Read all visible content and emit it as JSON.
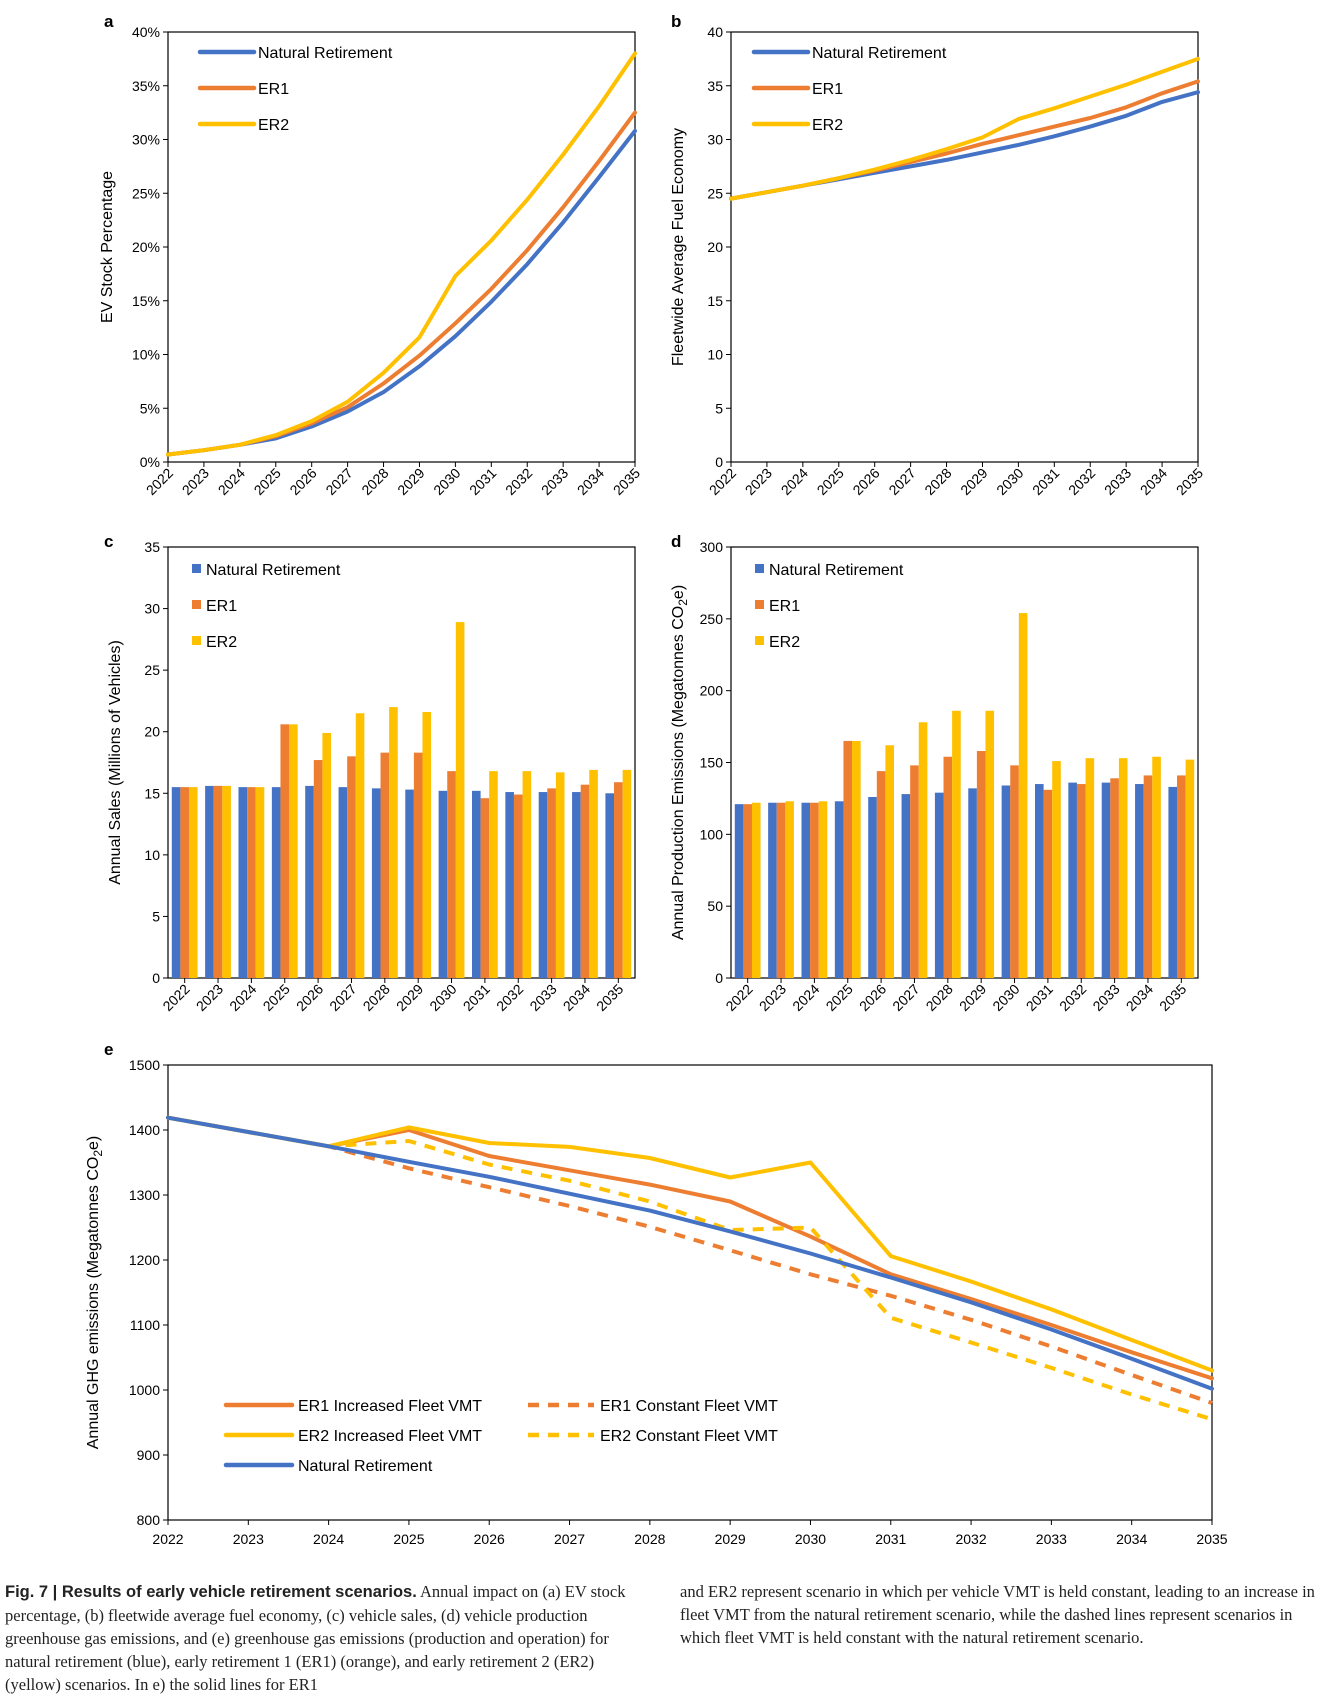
{
  "colors": {
    "natural": "#4472C4",
    "er1": "#ED7D31",
    "er2": "#FFC000"
  },
  "chart_data": [
    {
      "id": "a",
      "panel_label": "a",
      "type": "line",
      "ylabel": "EV Stock Percentage",
      "ylim": [
        0,
        40
      ],
      "yticks": [
        "0%",
        "5%",
        "10%",
        "15%",
        "20%",
        "25%",
        "30%",
        "35%",
        "40%"
      ],
      "categories": [
        "2022",
        "2023",
        "2024",
        "2025",
        "2026",
        "2027",
        "2028",
        "2029",
        "2030",
        "2031",
        "2032",
        "2033",
        "2034",
        "2035"
      ],
      "legend_placement": "top-left",
      "series": [
        {
          "name": "Natural Retirement",
          "color": "#4472C4",
          "values": [
            0.7,
            1.1,
            1.6,
            2.2,
            3.3,
            4.7,
            6.5,
            8.9,
            11.7,
            14.9,
            18.4,
            22.3,
            26.5,
            30.8
          ]
        },
        {
          "name": "ER1",
          "color": "#ED7D31",
          "values": [
            0.7,
            1.1,
            1.6,
            2.4,
            3.6,
            5.1,
            7.3,
            9.9,
            12.9,
            16.1,
            19.7,
            23.7,
            28.0,
            32.5
          ]
        },
        {
          "name": "ER2",
          "color": "#FFC000",
          "values": [
            0.7,
            1.1,
            1.6,
            2.5,
            3.8,
            5.6,
            8.3,
            11.6,
            17.3,
            20.6,
            24.4,
            28.6,
            33.1,
            38.0
          ]
        }
      ]
    },
    {
      "id": "b",
      "panel_label": "b",
      "type": "line",
      "ylabel": "Fleetwide Average Fuel Economy",
      "ylim": [
        0,
        40
      ],
      "yticks": [
        "0",
        "5",
        "10",
        "15",
        "20",
        "25",
        "30",
        "35",
        "40"
      ],
      "categories": [
        "2022",
        "2023",
        "2024",
        "2025",
        "2026",
        "2027",
        "2028",
        "2029",
        "2030",
        "2031",
        "2032",
        "2033",
        "2034",
        "2035"
      ],
      "legend_placement": "top-left",
      "series": [
        {
          "name": "Natural Retirement",
          "color": "#4472C4",
          "values": [
            24.5,
            25.1,
            25.7,
            26.3,
            26.9,
            27.5,
            28.1,
            28.8,
            29.5,
            30.3,
            31.2,
            32.2,
            33.5,
            34.4
          ]
        },
        {
          "name": "ER1",
          "color": "#ED7D31",
          "values": [
            24.5,
            25.1,
            25.7,
            26.4,
            27.1,
            27.9,
            28.7,
            29.6,
            30.4,
            31.2,
            32.0,
            33.0,
            34.3,
            35.4
          ]
        },
        {
          "name": "ER2",
          "color": "#FFC000",
          "values": [
            24.5,
            25.1,
            25.7,
            26.4,
            27.2,
            28.1,
            29.1,
            30.2,
            31.9,
            32.9,
            34.0,
            35.1,
            36.3,
            37.5
          ]
        }
      ]
    },
    {
      "id": "c",
      "panel_label": "c",
      "type": "bar",
      "ylabel": "Annual Sales (Millions of Vehicles)",
      "ylim": [
        0,
        35
      ],
      "yticks": [
        "0",
        "5",
        "10",
        "15",
        "20",
        "25",
        "30",
        "35"
      ],
      "categories": [
        "2022",
        "2023",
        "2024",
        "2025",
        "2026",
        "2027",
        "2028",
        "2029",
        "2030",
        "2031",
        "2032",
        "2033",
        "2034",
        "2035"
      ],
      "legend_placement": "top-left",
      "series": [
        {
          "name": "Natural Retirement",
          "color": "#4472C4",
          "values": [
            15.5,
            15.6,
            15.5,
            15.5,
            15.6,
            15.5,
            15.4,
            15.3,
            15.2,
            15.2,
            15.1,
            15.1,
            15.1,
            15.0
          ]
        },
        {
          "name": "ER1",
          "color": "#ED7D31",
          "values": [
            15.5,
            15.6,
            15.5,
            20.6,
            17.7,
            18.0,
            18.3,
            18.3,
            16.8,
            14.6,
            14.9,
            15.4,
            15.7,
            15.9
          ]
        },
        {
          "name": "ER2",
          "color": "#FFC000",
          "values": [
            15.5,
            15.6,
            15.5,
            20.6,
            19.9,
            21.5,
            22.0,
            21.6,
            28.9,
            16.8,
            16.8,
            16.7,
            16.9,
            16.9
          ]
        }
      ]
    },
    {
      "id": "d",
      "panel_label": "d",
      "type": "bar",
      "ylabel": "Annual Production Emissions (Megatonnes CO2e)",
      "ylabel_main": "Annual Production Emissions (Megatonnes CO",
      "ylabel_sub": "2",
      "ylabel_end": "e)",
      "ylim": [
        0,
        300
      ],
      "yticks": [
        "0",
        "50",
        "100",
        "150",
        "200",
        "250",
        "300"
      ],
      "categories": [
        "2022",
        "2023",
        "2024",
        "2025",
        "2026",
        "2027",
        "2028",
        "2029",
        "2030",
        "2031",
        "2032",
        "2033",
        "2034",
        "2035"
      ],
      "legend_placement": "top-left",
      "series": [
        {
          "name": "Natural Retirement",
          "color": "#4472C4",
          "values": [
            121,
            122,
            122,
            123,
            126,
            128,
            129,
            132,
            134,
            135,
            136,
            136,
            135,
            133
          ]
        },
        {
          "name": "ER1",
          "color": "#ED7D31",
          "values": [
            121,
            122,
            122,
            165,
            144,
            148,
            154,
            158,
            148,
            131,
            135,
            139,
            141,
            141
          ]
        },
        {
          "name": "ER2",
          "color": "#FFC000",
          "values": [
            122,
            123,
            123,
            165,
            162,
            178,
            186,
            186,
            254,
            151,
            153,
            153,
            154,
            152
          ]
        }
      ]
    },
    {
      "id": "e",
      "panel_label": "e",
      "type": "line",
      "ylabel": "Annual GHG emissions (Megatonnes CO2e)",
      "ylabel_main": "Annual GHG emissions (Megatonnes CO",
      "ylabel_sub": "2",
      "ylabel_end": "e)",
      "ylim": [
        800,
        1500
      ],
      "yticks": [
        "800",
        "900",
        "1000",
        "1100",
        "1200",
        "1300",
        "1400",
        "1500"
      ],
      "categories": [
        "2022",
        "2023",
        "2024",
        "2025",
        "2026",
        "2027",
        "2028",
        "2029",
        "2030",
        "2031",
        "2032",
        "2033",
        "2034",
        "2035"
      ],
      "legend_placement": "bottom-left",
      "series": [
        {
          "name": "ER1 Increased Fleet VMT",
          "color": "#ED7D31",
          "dashed": false,
          "values": [
            1419,
            1397,
            1375,
            1400,
            1360,
            1338,
            1316,
            1290,
            1236,
            1178,
            1140,
            1100,
            1058,
            1018
          ]
        },
        {
          "name": "ER1 Constant Fleet VMT",
          "color": "#ED7D31",
          "dashed": true,
          "values": [
            1419,
            1397,
            1375,
            1341,
            1312,
            1283,
            1251,
            1215,
            1178,
            1145,
            1108,
            1067,
            1023,
            980
          ]
        },
        {
          "name": "ER2 Increased Fleet VMT",
          "color": "#FFC000",
          "dashed": false,
          "values": [
            1419,
            1397,
            1375,
            1404,
            1380,
            1374,
            1357,
            1327,
            1350,
            1206,
            1167,
            1124,
            1077,
            1030
          ]
        },
        {
          "name": "ER2 Constant Fleet VMT",
          "color": "#FFC000",
          "dashed": true,
          "values": [
            1419,
            1397,
            1375,
            1383,
            1347,
            1322,
            1290,
            1246,
            1250,
            1111,
            1073,
            1034,
            993,
            955
          ]
        },
        {
          "name": "Natural Retirement",
          "color": "#4472C4",
          "dashed": false,
          "values": [
            1419,
            1397,
            1375,
            1351,
            1328,
            1302,
            1276,
            1244,
            1210,
            1173,
            1135,
            1093,
            1048,
            1002
          ]
        }
      ]
    }
  ],
  "caption": {
    "fig_label": "Fig. 7 | Results of early vehicle retirement scenarios.",
    "left_text": "Annual impact on (a) EV stock percentage, (b) fleetwide average fuel economy, (c) vehicle sales, (d) vehicle production greenhouse gas emissions, and (e) greenhouse gas emissions (production and operation) for natural retirement (blue), early retirement 1 (ER1) (orange), and early retirement 2 (ER2) (yellow) scenarios. In e) the solid lines for ER1",
    "right_text": "and ER2 represent scenario in which per vehicle VMT is held constant, leading to an increase in fleet VMT from the natural retirement scenario, while the dashed lines represent scenarios in which fleet VMT is held constant with the natural retirement scenario."
  }
}
